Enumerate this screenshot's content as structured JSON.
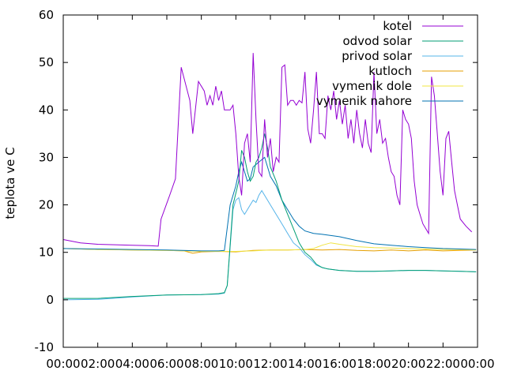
{
  "chart_data": {
    "type": "line",
    "title": "",
    "xlabel": "",
    "ylabel": "teplota ve C",
    "xlim": [
      "00:00",
      "24:00"
    ],
    "ylim": [
      -10,
      60
    ],
    "grid": false,
    "legend_position": "top-right",
    "x_ticks": [
      "00:00",
      "02:00",
      "04:00",
      "06:00",
      "08:00",
      "10:00",
      "12:00",
      "14:00",
      "16:00",
      "18:00",
      "20:00",
      "22:00",
      "00:00"
    ],
    "y_ticks": [
      -10,
      0,
      10,
      20,
      30,
      40,
      50,
      60
    ],
    "series": [
      {
        "name": "kotel",
        "color": "#9400d3",
        "points": [
          [
            "00:00",
            12.7
          ],
          [
            "01:00",
            12.0
          ],
          [
            "02:00",
            11.7
          ],
          [
            "03:00",
            11.6
          ],
          [
            "04:00",
            11.5
          ],
          [
            "05:00",
            11.4
          ],
          [
            "05:30",
            11.3
          ],
          [
            "05:40",
            17.0
          ],
          [
            "06:10",
            22.0
          ],
          [
            "06:30",
            25.5
          ],
          [
            "06:50",
            49.0
          ],
          [
            "07:20",
            42.0
          ],
          [
            "07:30",
            35.0
          ],
          [
            "07:50",
            46.0
          ],
          [
            "08:10",
            44.0
          ],
          [
            "08:20",
            41.0
          ],
          [
            "08:30",
            43.0
          ],
          [
            "08:40",
            41.0
          ],
          [
            "08:50",
            45.0
          ],
          [
            "09:00",
            42.0
          ],
          [
            "09:10",
            44.0
          ],
          [
            "09:20",
            40.0
          ],
          [
            "09:40",
            40.0
          ],
          [
            "09:50",
            41.0
          ],
          [
            "10:00",
            35.0
          ],
          [
            "10:10",
            26.0
          ],
          [
            "10:20",
            22.0
          ],
          [
            "10:30",
            33.0
          ],
          [
            "10:40",
            35.0
          ],
          [
            "10:50",
            29.0
          ],
          [
            "11:00",
            52.0
          ],
          [
            "11:10",
            38.0
          ],
          [
            "11:20",
            27.0
          ],
          [
            "11:30",
            26.0
          ],
          [
            "11:40",
            38.0
          ],
          [
            "11:50",
            30.0
          ],
          [
            "12:00",
            34.0
          ],
          [
            "12:10",
            27.0
          ],
          [
            "12:20",
            30.0
          ],
          [
            "12:30",
            29.0
          ],
          [
            "12:40",
            49.0
          ],
          [
            "12:50",
            49.5
          ],
          [
            "13:00",
            41.0
          ],
          [
            "13:10",
            42.0
          ],
          [
            "13:20",
            42.0
          ],
          [
            "13:30",
            41.0
          ],
          [
            "13:40",
            42.0
          ],
          [
            "13:50",
            41.5
          ],
          [
            "14:00",
            48.0
          ],
          [
            "14:10",
            36.0
          ],
          [
            "14:20",
            33.0
          ],
          [
            "14:30",
            40.0
          ],
          [
            "14:40",
            48.0
          ],
          [
            "14:50",
            35.0
          ],
          [
            "15:00",
            35.0
          ],
          [
            "15:10",
            34.0
          ],
          [
            "15:20",
            43.0
          ],
          [
            "15:30",
            40.0
          ],
          [
            "15:40",
            44.0
          ],
          [
            "15:50",
            38.0
          ],
          [
            "16:00",
            42.0
          ],
          [
            "16:10",
            37.0
          ],
          [
            "16:20",
            41.0
          ],
          [
            "16:30",
            34.0
          ],
          [
            "16:40",
            38.0
          ],
          [
            "16:50",
            33.0
          ],
          [
            "17:00",
            40.0
          ],
          [
            "17:10",
            35.0
          ],
          [
            "17:20",
            32.0
          ],
          [
            "17:30",
            38.0
          ],
          [
            "17:40",
            33.0
          ],
          [
            "17:50",
            31.0
          ],
          [
            "18:00",
            48.0
          ],
          [
            "18:10",
            35.0
          ],
          [
            "18:20",
            38.0
          ],
          [
            "18:30",
            33.0
          ],
          [
            "18:40",
            34.0
          ],
          [
            "18:50",
            30.0
          ],
          [
            "19:00",
            27.0
          ],
          [
            "19:10",
            26.0
          ],
          [
            "19:20",
            22.0
          ],
          [
            "19:30",
            20.0
          ],
          [
            "19:40",
            40.0
          ],
          [
            "19:50",
            38.0
          ],
          [
            "20:00",
            37.0
          ],
          [
            "20:10",
            34.0
          ],
          [
            "20:20",
            25.0
          ],
          [
            "20:30",
            20.0
          ],
          [
            "20:40",
            18.0
          ],
          [
            "20:50",
            16.0
          ],
          [
            "21:00",
            15.0
          ],
          [
            "21:10",
            14.0
          ],
          [
            "21:20",
            47.0
          ],
          [
            "21:30",
            43.0
          ],
          [
            "21:40",
            35.0
          ],
          [
            "21:50",
            27.0
          ],
          [
            "22:00",
            22.0
          ],
          [
            "22:10",
            34.0
          ],
          [
            "22:20",
            35.5
          ],
          [
            "22:30",
            29.0
          ],
          [
            "22:40",
            23.0
          ],
          [
            "22:50",
            20.0
          ],
          [
            "23:00",
            17.0
          ],
          [
            "23:20",
            15.5
          ],
          [
            "23:40",
            14.3
          ]
        ]
      },
      {
        "name": "odvod solar",
        "color": "#009e73",
        "points": [
          [
            "00:00",
            0.3
          ],
          [
            "02:00",
            0.3
          ],
          [
            "04:00",
            0.7
          ],
          [
            "06:00",
            1.0
          ],
          [
            "08:00",
            1.1
          ],
          [
            "09:00",
            1.3
          ],
          [
            "09:20",
            1.5
          ],
          [
            "09:30",
            3.0
          ],
          [
            "09:50",
            20.0
          ],
          [
            "10:10",
            25.0
          ],
          [
            "10:20",
            31.5
          ],
          [
            "10:30",
            30.0
          ],
          [
            "10:40",
            27.0
          ],
          [
            "10:50",
            25.0
          ],
          [
            "11:00",
            26.0
          ],
          [
            "11:10",
            29.0
          ],
          [
            "11:20",
            30.0
          ],
          [
            "11:30",
            32.0
          ],
          [
            "11:40",
            35.0
          ],
          [
            "11:50",
            32.0
          ],
          [
            "12:00",
            28.0
          ],
          [
            "12:20",
            25.0
          ],
          [
            "12:40",
            21.0
          ],
          [
            "13:00",
            18.0
          ],
          [
            "13:20",
            15.0
          ],
          [
            "13:40",
            12.0
          ],
          [
            "14:00",
            10.0
          ],
          [
            "14:20",
            9.0
          ],
          [
            "14:40",
            7.5
          ],
          [
            "15:00",
            6.8
          ],
          [
            "15:20",
            6.5
          ],
          [
            "16:00",
            6.2
          ],
          [
            "17:00",
            6.0
          ],
          [
            "18:00",
            6.0
          ],
          [
            "19:00",
            6.1
          ],
          [
            "20:00",
            6.2
          ],
          [
            "21:00",
            6.2
          ],
          [
            "22:00",
            6.1
          ],
          [
            "23:00",
            6.0
          ],
          [
            "23:55",
            5.9
          ]
        ]
      },
      {
        "name": "privod solar",
        "color": "#56b4e9",
        "points": [
          [
            "00:00",
            0.0
          ],
          [
            "02:00",
            0.1
          ],
          [
            "04:00",
            0.6
          ],
          [
            "06:00",
            1.0
          ],
          [
            "08:00",
            1.1
          ],
          [
            "09:00",
            1.2
          ],
          [
            "09:20",
            1.4
          ],
          [
            "09:30",
            3.0
          ],
          [
            "09:50",
            19.0
          ],
          [
            "10:00",
            21.0
          ],
          [
            "10:10",
            21.5
          ],
          [
            "10:20",
            19.0
          ],
          [
            "10:30",
            18.0
          ],
          [
            "10:40",
            19.0
          ],
          [
            "10:50",
            20.0
          ],
          [
            "11:00",
            21.0
          ],
          [
            "11:10",
            20.5
          ],
          [
            "11:20",
            22.0
          ],
          [
            "11:30",
            23.0
          ],
          [
            "11:40",
            22.0
          ],
          [
            "12:00",
            20.0
          ],
          [
            "12:20",
            18.0
          ],
          [
            "12:40",
            16.0
          ],
          [
            "13:00",
            14.0
          ],
          [
            "13:20",
            12.0
          ],
          [
            "13:40",
            11.0
          ],
          [
            "14:00",
            9.5
          ],
          [
            "14:20",
            8.5
          ],
          [
            "14:40",
            7.3
          ],
          [
            "15:00",
            6.8
          ],
          [
            "15:20",
            6.5
          ],
          [
            "16:00",
            6.2
          ],
          [
            "17:00",
            6.0
          ],
          [
            "18:00",
            6.0
          ],
          [
            "19:00",
            6.1
          ],
          [
            "20:00",
            6.2
          ],
          [
            "21:00",
            6.2
          ],
          [
            "22:00",
            6.1
          ],
          [
            "23:00",
            6.0
          ],
          [
            "23:55",
            5.9
          ]
        ]
      },
      {
        "name": "kutloch",
        "color": "#e69f00",
        "points": [
          [
            "00:00",
            10.8
          ],
          [
            "02:00",
            10.6
          ],
          [
            "04:00",
            10.5
          ],
          [
            "06:00",
            10.4
          ],
          [
            "07:00",
            10.3
          ],
          [
            "07:30",
            9.8
          ],
          [
            "08:00",
            10.1
          ],
          [
            "09:00",
            10.2
          ],
          [
            "10:00",
            10.1
          ],
          [
            "11:00",
            10.4
          ],
          [
            "12:00",
            10.5
          ],
          [
            "13:00",
            10.5
          ],
          [
            "14:00",
            10.6
          ],
          [
            "15:00",
            10.5
          ],
          [
            "16:00",
            10.6
          ],
          [
            "17:00",
            10.4
          ],
          [
            "18:00",
            10.3
          ],
          [
            "19:00",
            10.5
          ],
          [
            "20:00",
            10.3
          ],
          [
            "21:00",
            10.5
          ],
          [
            "22:00",
            10.3
          ],
          [
            "23:00",
            10.4
          ],
          [
            "23:55",
            10.5
          ]
        ]
      },
      {
        "name": "vymenik dole",
        "color": "#f0e442",
        "points": [
          [
            "00:00",
            10.8
          ],
          [
            "02:00",
            10.6
          ],
          [
            "04:00",
            10.5
          ],
          [
            "06:00",
            10.4
          ],
          [
            "08:00",
            10.2
          ],
          [
            "09:00",
            10.2
          ],
          [
            "10:00",
            10.2
          ],
          [
            "11:00",
            10.3
          ],
          [
            "12:00",
            10.5
          ],
          [
            "13:00",
            10.5
          ],
          [
            "14:00",
            10.6
          ],
          [
            "14:30",
            10.8
          ],
          [
            "15:00",
            11.5
          ],
          [
            "15:30",
            12.0
          ],
          [
            "16:00",
            11.7
          ],
          [
            "17:00",
            11.2
          ],
          [
            "18:00",
            11.0
          ],
          [
            "19:00",
            10.9
          ],
          [
            "20:00",
            10.8
          ],
          [
            "21:00",
            10.7
          ],
          [
            "22:00",
            10.6
          ],
          [
            "23:00",
            10.6
          ],
          [
            "23:55",
            10.5
          ]
        ]
      },
      {
        "name": "vymenik nahore",
        "color": "#0072b2",
        "points": [
          [
            "00:00",
            10.8
          ],
          [
            "02:00",
            10.7
          ],
          [
            "04:00",
            10.6
          ],
          [
            "06:00",
            10.5
          ],
          [
            "08:00",
            10.3
          ],
          [
            "09:00",
            10.3
          ],
          [
            "09:20",
            10.4
          ],
          [
            "09:40",
            20.0
          ],
          [
            "10:00",
            24.0
          ],
          [
            "10:10",
            27.0
          ],
          [
            "10:20",
            29.0
          ],
          [
            "10:30",
            27.0
          ],
          [
            "10:40",
            25.0
          ],
          [
            "10:50",
            25.5
          ],
          [
            "11:00",
            28.0
          ],
          [
            "11:20",
            29.0
          ],
          [
            "11:40",
            30.0
          ],
          [
            "11:50",
            28.0
          ],
          [
            "12:00",
            26.0
          ],
          [
            "12:20",
            24.0
          ],
          [
            "12:40",
            21.0
          ],
          [
            "13:00",
            19.0
          ],
          [
            "13:20",
            17.0
          ],
          [
            "13:40",
            15.5
          ],
          [
            "14:00",
            14.5
          ],
          [
            "14:30",
            14.0
          ],
          [
            "15:00",
            13.8
          ],
          [
            "16:00",
            13.3
          ],
          [
            "17:00",
            12.5
          ],
          [
            "18:00",
            11.8
          ],
          [
            "19:00",
            11.5
          ],
          [
            "20:00",
            11.2
          ],
          [
            "21:00",
            11.0
          ],
          [
            "22:00",
            10.8
          ],
          [
            "23:00",
            10.7
          ],
          [
            "23:55",
            10.6
          ]
        ]
      }
    ]
  }
}
